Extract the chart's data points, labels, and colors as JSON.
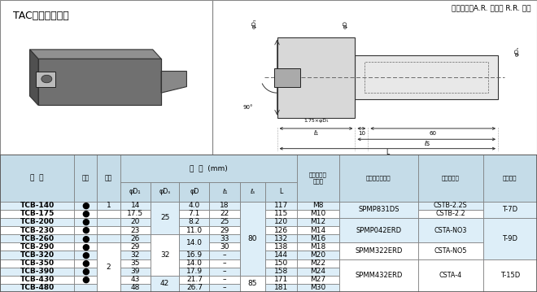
{
  "title": "TAC座ぐりカッタ",
  "subtitle_right": "すくい角　A.R. ポジ　 R.R. ネガ",
  "rows": [
    [
      "TCB-140",
      "●",
      "1",
      "14",
      "25",
      "4.0",
      "18",
      "80",
      "117",
      "M8",
      "SPMP831DS",
      "CSTB-2.2S",
      "T-7D"
    ],
    [
      "TCB-175",
      "●",
      "",
      "17.5",
      "25",
      "7.1",
      "22",
      "80",
      "115",
      "M10",
      "SPMP831DS",
      "CSTB-2.2",
      "T-7D"
    ],
    [
      "TCB-200",
      "●",
      "",
      "20",
      "25",
      "8.2",
      "25",
      "80",
      "120",
      "M12",
      "SPMP042ERD",
      "CSTA-NO3",
      "T-9D"
    ],
    [
      "TCB-230",
      "●",
      "",
      "23",
      "25",
      "11.0",
      "29",
      "80",
      "126",
      "M14",
      "SPMP042ERD",
      "CSTA-NO3",
      "T-9D"
    ],
    [
      "TCB-260",
      "●",
      "",
      "26",
      "32",
      "14.0",
      "33",
      "80",
      "132",
      "M16",
      "SPMP042ERD",
      "CSTA-NO3",
      "T-9D"
    ],
    [
      "TCB-290",
      "●",
      "2",
      "29",
      "32",
      "14.0",
      "30",
      "80",
      "138",
      "M18",
      "SPMM322ERD",
      "CSTA-NO5",
      "T-9D"
    ],
    [
      "TCB-320",
      "●",
      "",
      "32",
      "32",
      "16.9",
      "–",
      "80",
      "144",
      "M20",
      "SPMM322ERD",
      "CSTA-NO5",
      "T-9D"
    ],
    [
      "TCB-350",
      "●",
      "",
      "35",
      "32",
      "14.0",
      "–",
      "80",
      "150",
      "M22",
      "SPMM432ERD",
      "CSTA-4",
      "T-15D"
    ],
    [
      "TCB-390",
      "●",
      "",
      "39",
      "32",
      "17.9",
      "–",
      "80",
      "158",
      "M24",
      "SPMM432ERD",
      "CSTA-4",
      "T-15D"
    ],
    [
      "TCB-430",
      "●",
      "",
      "43",
      "42",
      "21.7",
      "–",
      "85",
      "171",
      "M27",
      "SPMM432ERD",
      "CSTA-4",
      "T-15D"
    ],
    [
      "TCB-480",
      "",
      "",
      "48",
      "42",
      "26.7",
      "–",
      "85",
      "181",
      "M30",
      "SPMM432ERD",
      "CSTA-4",
      "T-15D"
    ]
  ],
  "header_bg": "#c5dce8",
  "row_bg_even": "#ddeef8",
  "row_bg_odd": "#ffffff",
  "border_color": "#888888",
  "fig_bg": "#ffffff"
}
